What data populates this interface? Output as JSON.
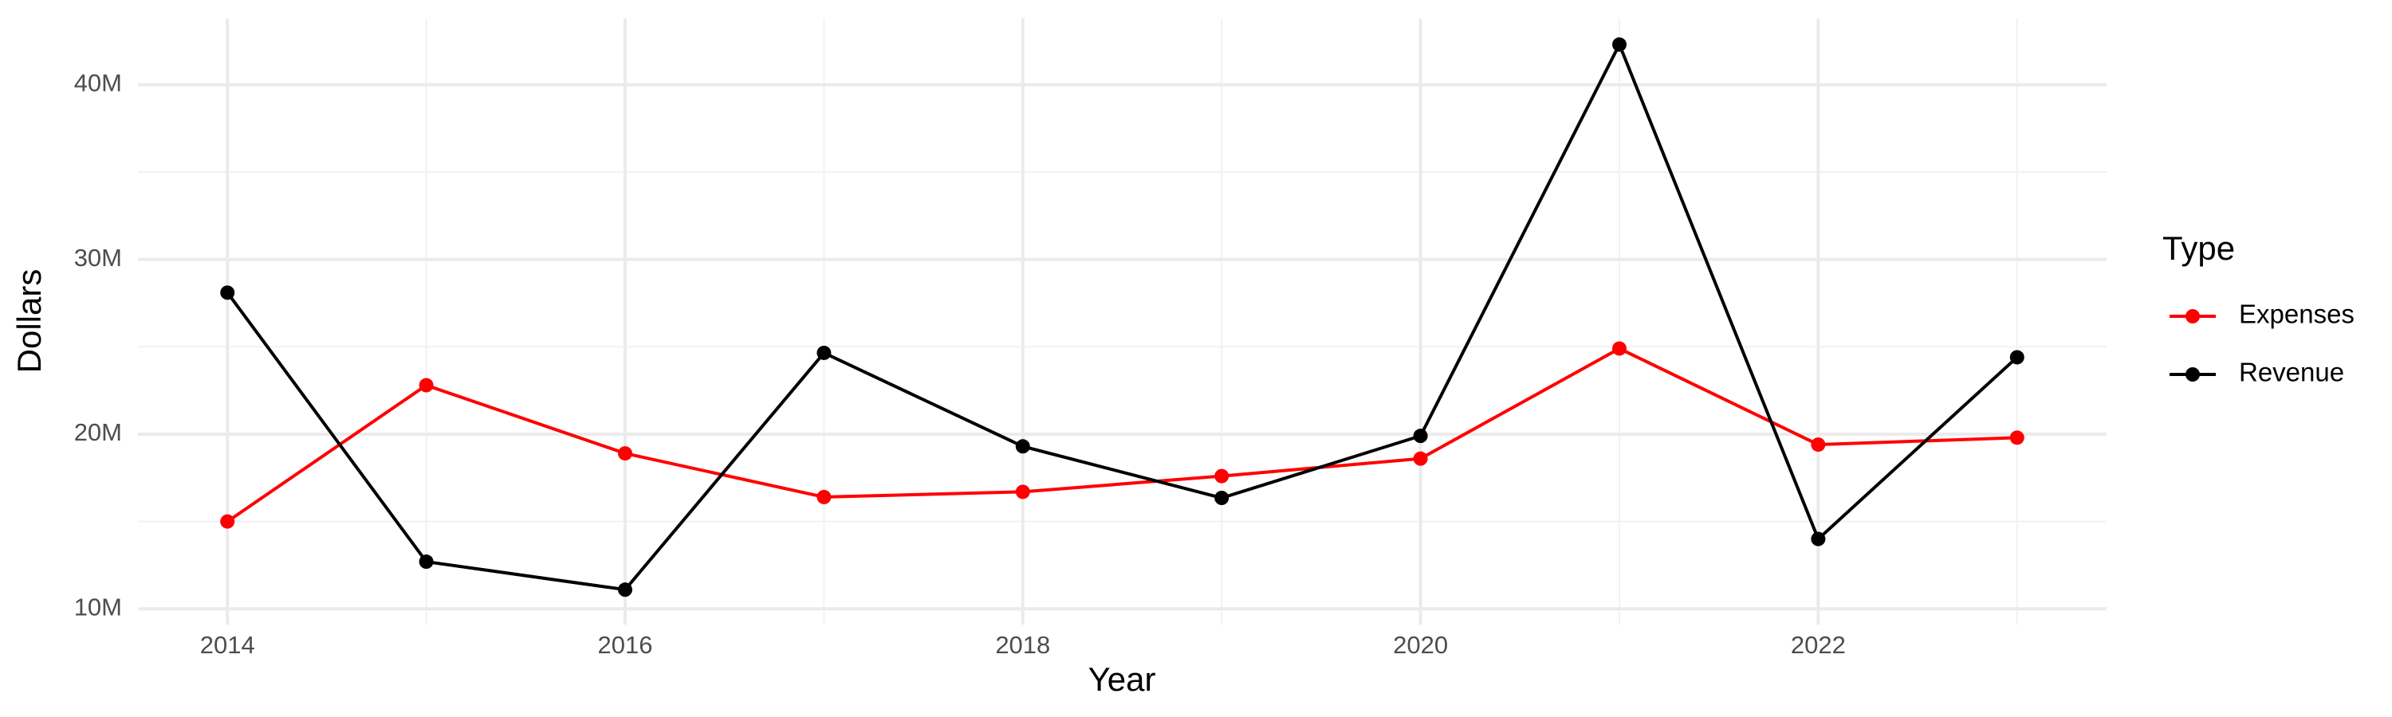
{
  "chart_data": {
    "type": "line",
    "x_label": "Year",
    "y_label": "Dollars",
    "legend_title": "Type",
    "legend_position": "right",
    "grid": true,
    "x": [
      2014,
      2015,
      2016,
      2017,
      2018,
      2019,
      2020,
      2021,
      2022,
      2023
    ],
    "series": [
      {
        "name": "Expenses",
        "color": "#ff0000",
        "values": [
          15000000,
          22800000,
          18900000,
          16400000,
          16700000,
          17600000,
          18600000,
          24900000,
          19400000,
          19800000
        ]
      },
      {
        "name": "Revenue",
        "color": "#000000",
        "values": [
          28100000,
          12700000,
          11100000,
          24650000,
          19300000,
          16350000,
          19900000,
          42300000,
          14000000,
          24400000
        ]
      }
    ],
    "xlim": [
      2013.55,
      2023.45
    ],
    "xticks": [
      2014,
      2016,
      2018,
      2020,
      2022
    ],
    "ylim": [
      9100000,
      43800000
    ],
    "yticks": [
      {
        "value": 10000000,
        "label": "10M"
      },
      {
        "value": 20000000,
        "label": "20M"
      },
      {
        "value": 30000000,
        "label": "30M"
      },
      {
        "value": 40000000,
        "label": "40M"
      }
    ]
  }
}
